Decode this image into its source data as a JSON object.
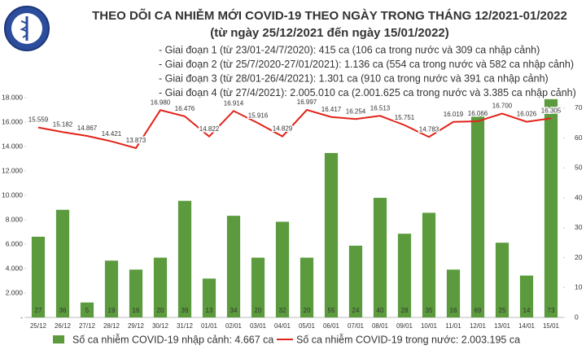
{
  "chart_data": {
    "type": "combo",
    "title": "THEO DÕI CA NHIỄM MỚI COVID-19 THEO NGÀY TRONG THÁNG 12/2021-01/2022",
    "subtitle": "(từ ngày 25/12/2021 đến ngày 15/01/2022)",
    "annotations": [
      "- Giai đoạn 1 (từ 23/01-24/7/2020): 415 ca (106 ca trong nước và 309 ca nhập cảnh)",
      "- Giai đoạn 2 (từ 25/7/2020-27/01/2021): 1.136 ca (554 ca trong nước và 582 ca nhập cảnh)",
      "- Giai đoạn 3 (từ 28/01-26/4/2021): 1.301 ca (910 ca trong nước và 391 ca nhập cảnh)",
      "- Giai đoạn 4 (từ 27/4/2021): 2.005.010 ca (2.001.625 ca trong nước và 3.385 ca nhập cảnh)"
    ],
    "categories": [
      "25/12",
      "26/12",
      "27/12",
      "28/12",
      "29/12",
      "30/12",
      "31/12",
      "01/01",
      "02/01",
      "03/01",
      "04/01",
      "05/01",
      "06/01",
      "07/01",
      "08/01",
      "09/01",
      "10/01",
      "11/01",
      "12/01",
      "13/01",
      "14/01",
      "15/01"
    ],
    "series": [
      {
        "name": "Số ca nhiễm COVID-19 nhập cảnh: 4.667 ca",
        "type": "bar",
        "axis": "y2",
        "color": "#5b9b3d",
        "values": [
          27,
          36,
          5,
          19,
          16,
          20,
          39,
          13,
          34,
          20,
          32,
          20,
          55,
          24,
          40,
          28,
          35,
          16,
          69,
          25,
          14,
          73
        ]
      },
      {
        "name": "Số ca nhiễm COVID-19 trong nước: 2.003.195 ca",
        "type": "line",
        "color": "#e2231a",
        "values": [
          15559,
          15182,
          14867,
          14421,
          13873,
          16980,
          16476,
          14822,
          16914,
          15916,
          14829,
          16997,
          16417,
          16254,
          16513,
          15751,
          14783,
          16019,
          16066,
          16700,
          16026,
          16305
        ],
        "value_labels": [
          "15.559",
          "15.182",
          "14.867",
          "14.421",
          "13.873",
          "16.980",
          "16.476",
          "14.822",
          "16.914",
          "15.916",
          "14.829",
          "16.997",
          "16.417",
          "16.254",
          "16.513",
          "15.751",
          "14.783",
          "16.019",
          "16.066",
          "16.700",
          "16.026",
          "16.305"
        ]
      }
    ],
    "ylim": [
      0,
      18000
    ],
    "yticks": [
      {
        "value": 0,
        "label": "-"
      },
      {
        "value": 2000,
        "label": "2.000"
      },
      {
        "value": 4000,
        "label": "4.000"
      },
      {
        "value": 6000,
        "label": "6.000"
      },
      {
        "value": 8000,
        "label": "8.000"
      },
      {
        "value": 10000,
        "label": "10.000"
      },
      {
        "value": 12000,
        "label": "12.000"
      },
      {
        "value": 14000,
        "label": "14.000"
      },
      {
        "value": 16000,
        "label": "16.000"
      },
      {
        "value": 18000,
        "label": "18.000"
      }
    ],
    "y2lim": [
      0,
      73.5
    ],
    "y2ticks": [
      0,
      10,
      20,
      30,
      40,
      50,
      60,
      70
    ],
    "legend": "bottom"
  }
}
